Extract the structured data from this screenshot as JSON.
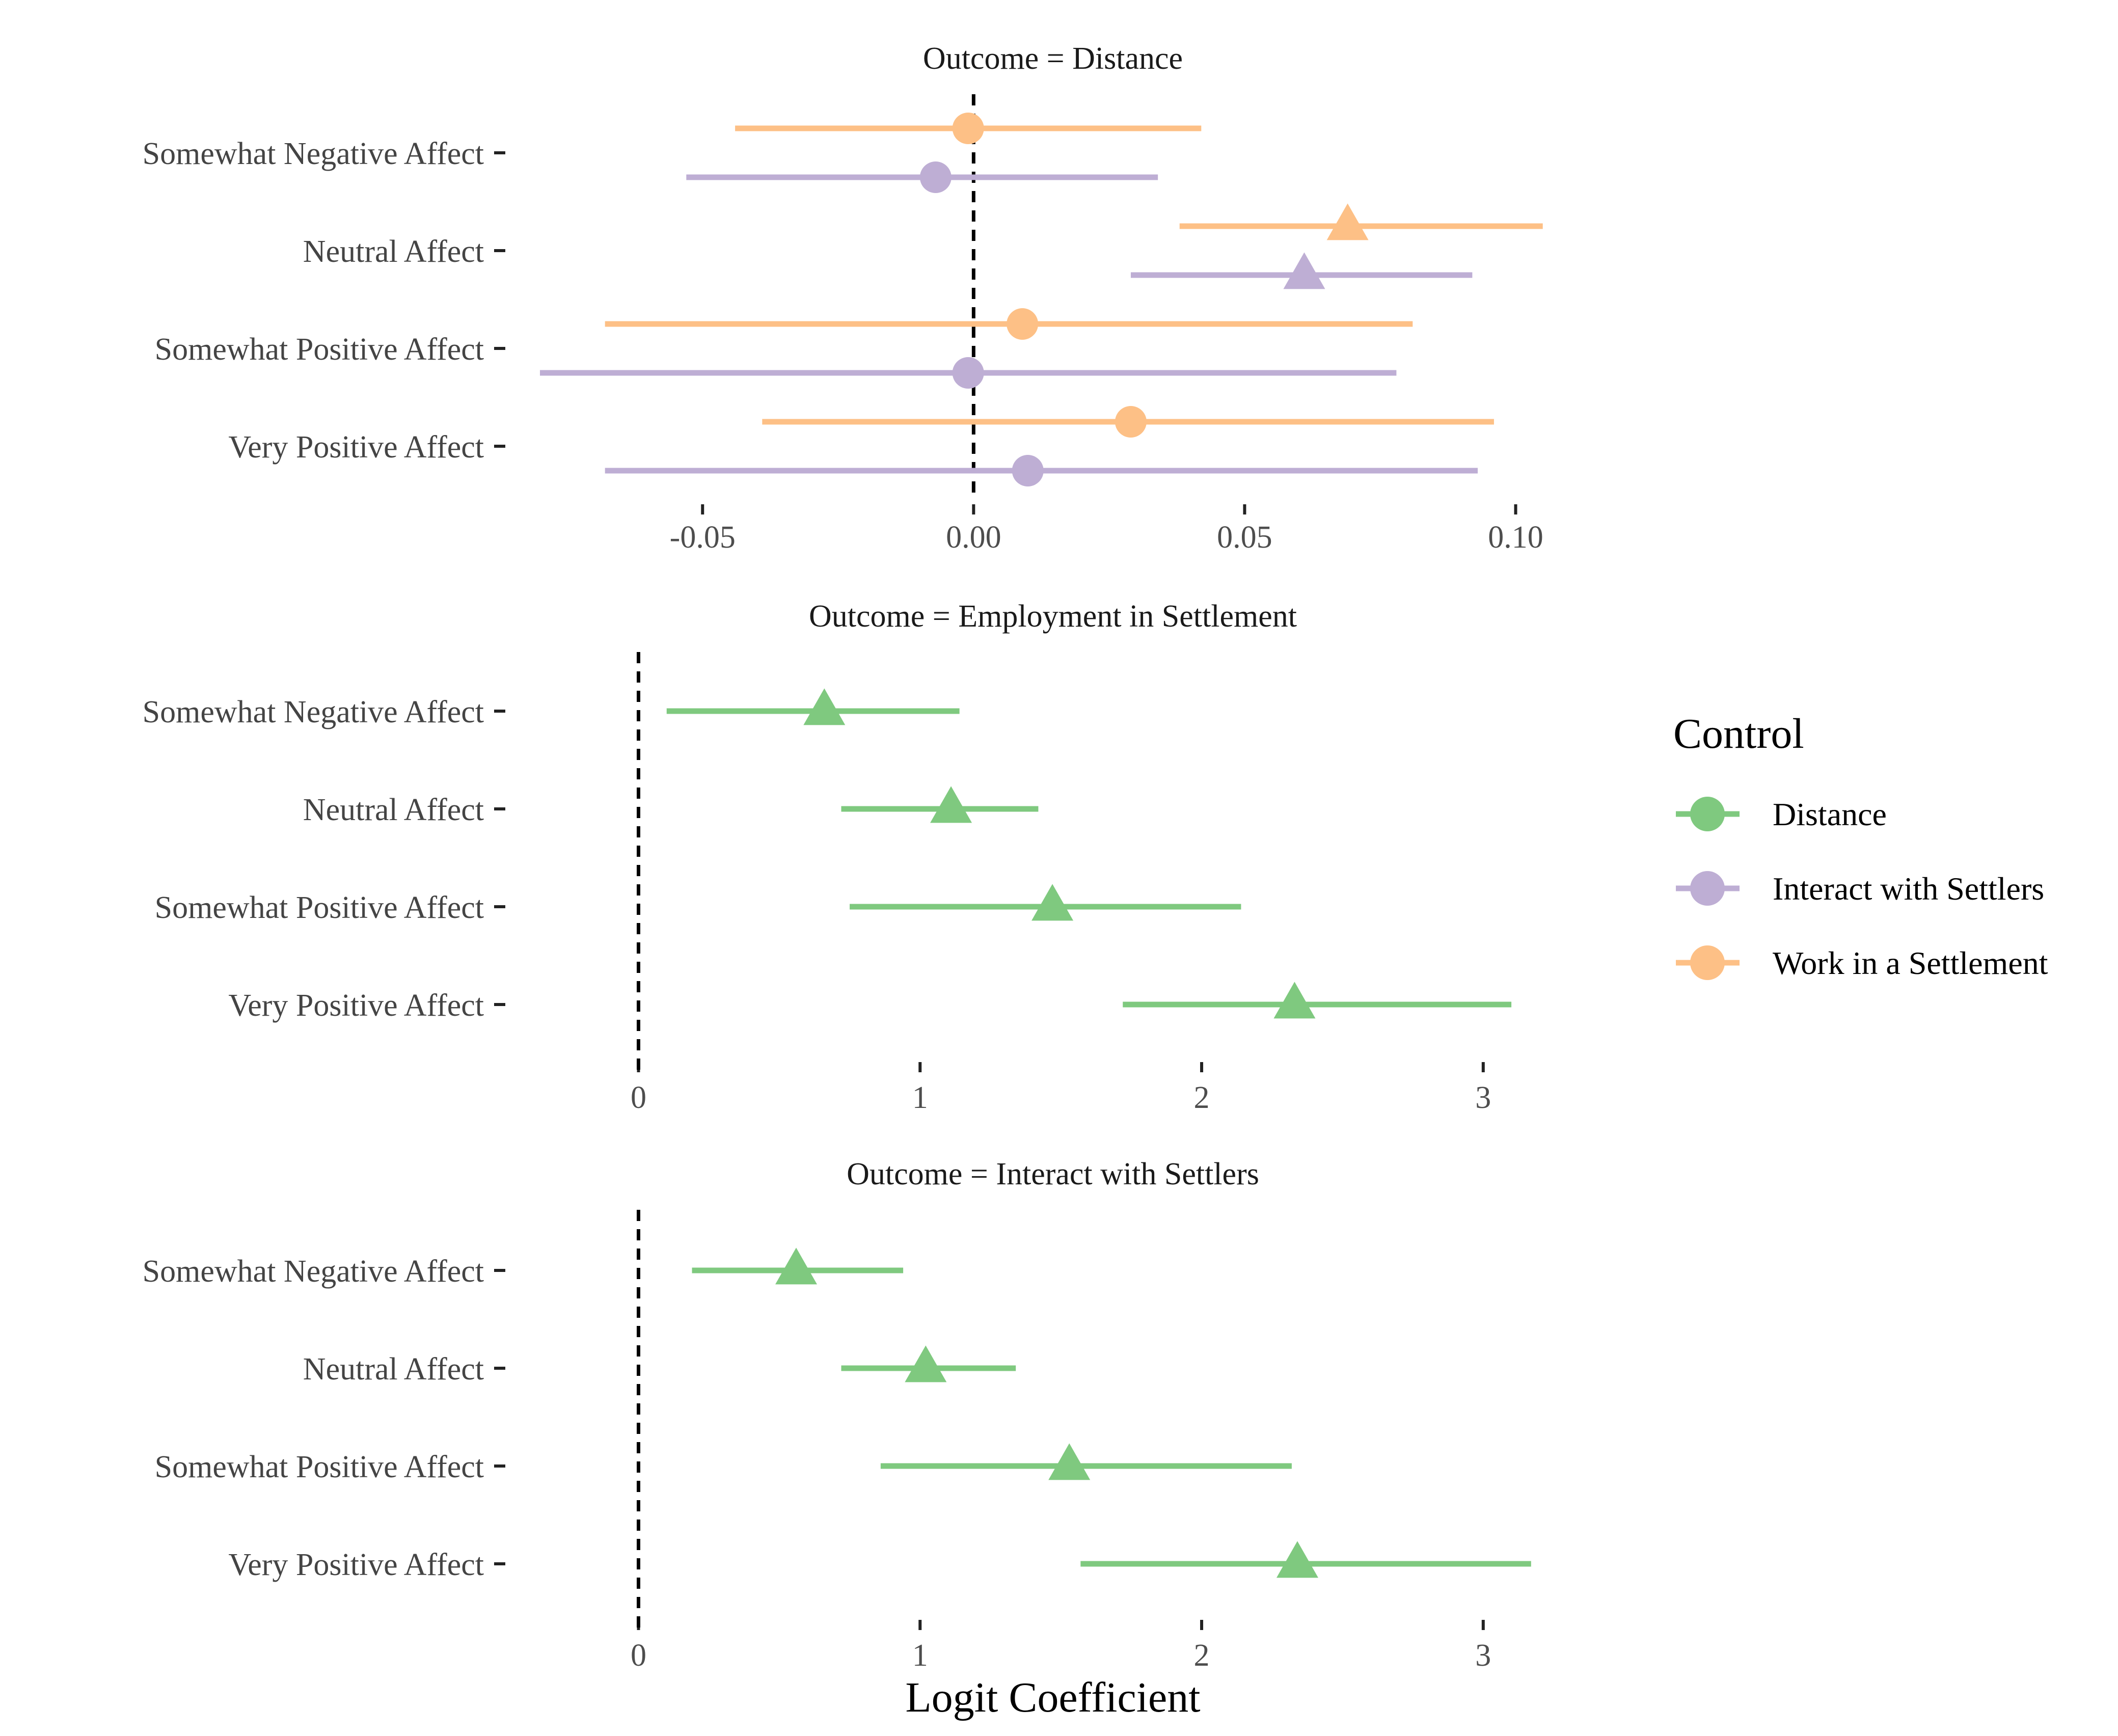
{
  "chart_data": {
    "type": "dot-whisker",
    "xlabel": "Logit Coefficient",
    "legend": {
      "title": "Control",
      "position": "right",
      "entries": [
        {
          "name": "Distance",
          "color": "#7fc97f"
        },
        {
          "name": "Interact with Settlers",
          "color": "#beaed4"
        },
        {
          "name": "Work in a Settlement",
          "color": "#fdc086"
        }
      ]
    },
    "categories": [
      "Somewhat Negative Affect",
      "Neutral Affect",
      "Somewhat Positive Affect",
      "Very Positive Affect"
    ],
    "colors": {
      "Distance": "#7fc97f",
      "Interact with Settlers": "#beaed4",
      "Work in a Settlement": "#fdc086"
    },
    "panels": [
      {
        "title": "Outcome =  Distance",
        "xlim": [
          -0.08,
          0.107
        ],
        "xticks": [
          -0.05,
          0.0,
          0.05,
          0.1
        ],
        "xtick_labels": [
          "-0.05",
          "0.00",
          "0.05",
          "0.10"
        ],
        "reference_line": 0,
        "series": [
          {
            "name": "Work in a Settlement",
            "offset": "upper",
            "points": [
              {
                "estimate": -0.001,
                "low": -0.044,
                "high": 0.042,
                "marker": "circle"
              },
              {
                "estimate": 0.069,
                "low": 0.038,
                "high": 0.105,
                "marker": "triangle"
              },
              {
                "estimate": 0.009,
                "low": -0.068,
                "high": 0.081,
                "marker": "circle"
              },
              {
                "estimate": 0.029,
                "low": -0.039,
                "high": 0.096,
                "marker": "circle"
              }
            ]
          },
          {
            "name": "Interact with Settlers",
            "offset": "lower",
            "points": [
              {
                "estimate": -0.007,
                "low": -0.053,
                "high": 0.034,
                "marker": "circle"
              },
              {
                "estimate": 0.061,
                "low": 0.029,
                "high": 0.092,
                "marker": "triangle"
              },
              {
                "estimate": -0.001,
                "low": -0.08,
                "high": 0.078,
                "marker": "circle"
              },
              {
                "estimate": 0.01,
                "low": -0.068,
                "high": 0.093,
                "marker": "circle"
              }
            ]
          }
        ]
      },
      {
        "title": "Outcome =  Employment in Settlement",
        "xlim": [
          -0.35,
          3.25
        ],
        "xticks": [
          0,
          1,
          2,
          3
        ],
        "xtick_labels": [
          "0",
          "1",
          "2",
          "3"
        ],
        "reference_line": 0,
        "series": [
          {
            "name": "Distance",
            "offset": "center",
            "points": [
              {
                "estimate": 0.66,
                "low": 0.1,
                "high": 1.14,
                "marker": "triangle"
              },
              {
                "estimate": 1.11,
                "low": 0.72,
                "high": 1.42,
                "marker": "triangle"
              },
              {
                "estimate": 1.47,
                "low": 0.75,
                "high": 2.14,
                "marker": "triangle"
              },
              {
                "estimate": 2.33,
                "low": 1.72,
                "high": 3.1,
                "marker": "triangle"
              }
            ]
          }
        ]
      },
      {
        "title": "Outcome =  Interact with Settlers",
        "xlim": [
          -0.35,
          3.25
        ],
        "xticks": [
          0,
          1,
          2,
          3
        ],
        "xtick_labels": [
          "0",
          "1",
          "2",
          "3"
        ],
        "reference_line": 0,
        "series": [
          {
            "name": "Distance",
            "offset": "center",
            "points": [
              {
                "estimate": 0.56,
                "low": 0.19,
                "high": 0.94,
                "marker": "triangle"
              },
              {
                "estimate": 1.02,
                "low": 0.72,
                "high": 1.34,
                "marker": "triangle"
              },
              {
                "estimate": 1.53,
                "low": 0.86,
                "high": 2.32,
                "marker": "triangle"
              },
              {
                "estimate": 2.34,
                "low": 1.57,
                "high": 3.17,
                "marker": "triangle"
              }
            ]
          }
        ]
      }
    ]
  }
}
